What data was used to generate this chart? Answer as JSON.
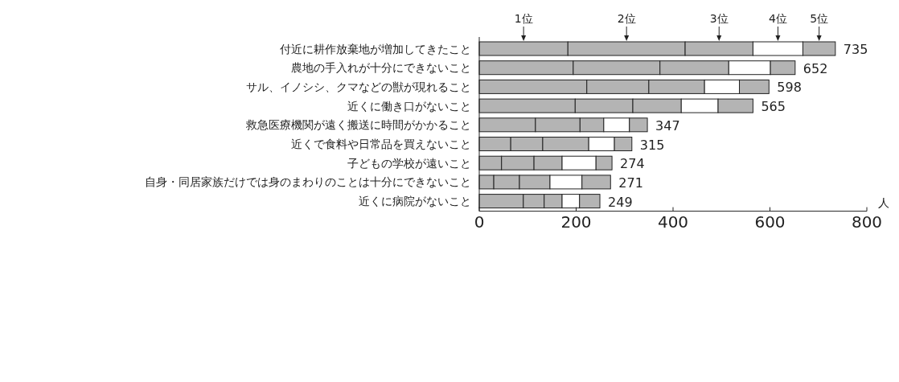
{
  "chart_data": {
    "type": "bar",
    "orientation": "horizontal",
    "stacked": true,
    "categories": [
      "付近に耕作放棄地が増加してきたこと",
      "農地の手入れが十分にできないこと",
      "サル、イノシシ、クマなどの獣が現れること",
      "近くに働き口がないこと",
      "救急医療機関が遠く搬送に時間がかかること",
      "近くで食料や日常品を買えないこと",
      "子どもの学校が遠いこと",
      "自身・同居家族だけでは身のまわりのことは十分にできないこと",
      "近くに病院がないこと"
    ],
    "series": [
      {
        "name": "1位",
        "color": "#b4b4b4",
        "values": [
          183,
          194,
          222,
          198,
          116,
          65,
          46,
          30,
          91
        ]
      },
      {
        "name": "2位",
        "color": "#b4b4b4",
        "values": [
          242,
          179,
          128,
          119,
          92,
          66,
          67,
          53,
          43
        ]
      },
      {
        "name": "3位",
        "color": "#b4b4b4",
        "values": [
          140,
          142,
          115,
          100,
          49,
          95,
          58,
          63,
          37
        ]
      },
      {
        "name": "4位",
        "color": "#ffffff",
        "values": [
          103,
          86,
          72,
          76,
          53,
          53,
          70,
          66,
          36
        ]
      },
      {
        "name": "5位",
        "color": "#b4b4b4",
        "values": [
          67,
          51,
          61,
          72,
          37,
          36,
          33,
          59,
          42
        ]
      }
    ],
    "totals": [
      "735",
      "652",
      "598",
      "565",
      "347",
      "315",
      "274",
      "271",
      "249"
    ],
    "xlabel": "人",
    "xlim": [
      0,
      800
    ],
    "xticks": [
      0,
      200,
      400,
      600,
      800
    ]
  }
}
